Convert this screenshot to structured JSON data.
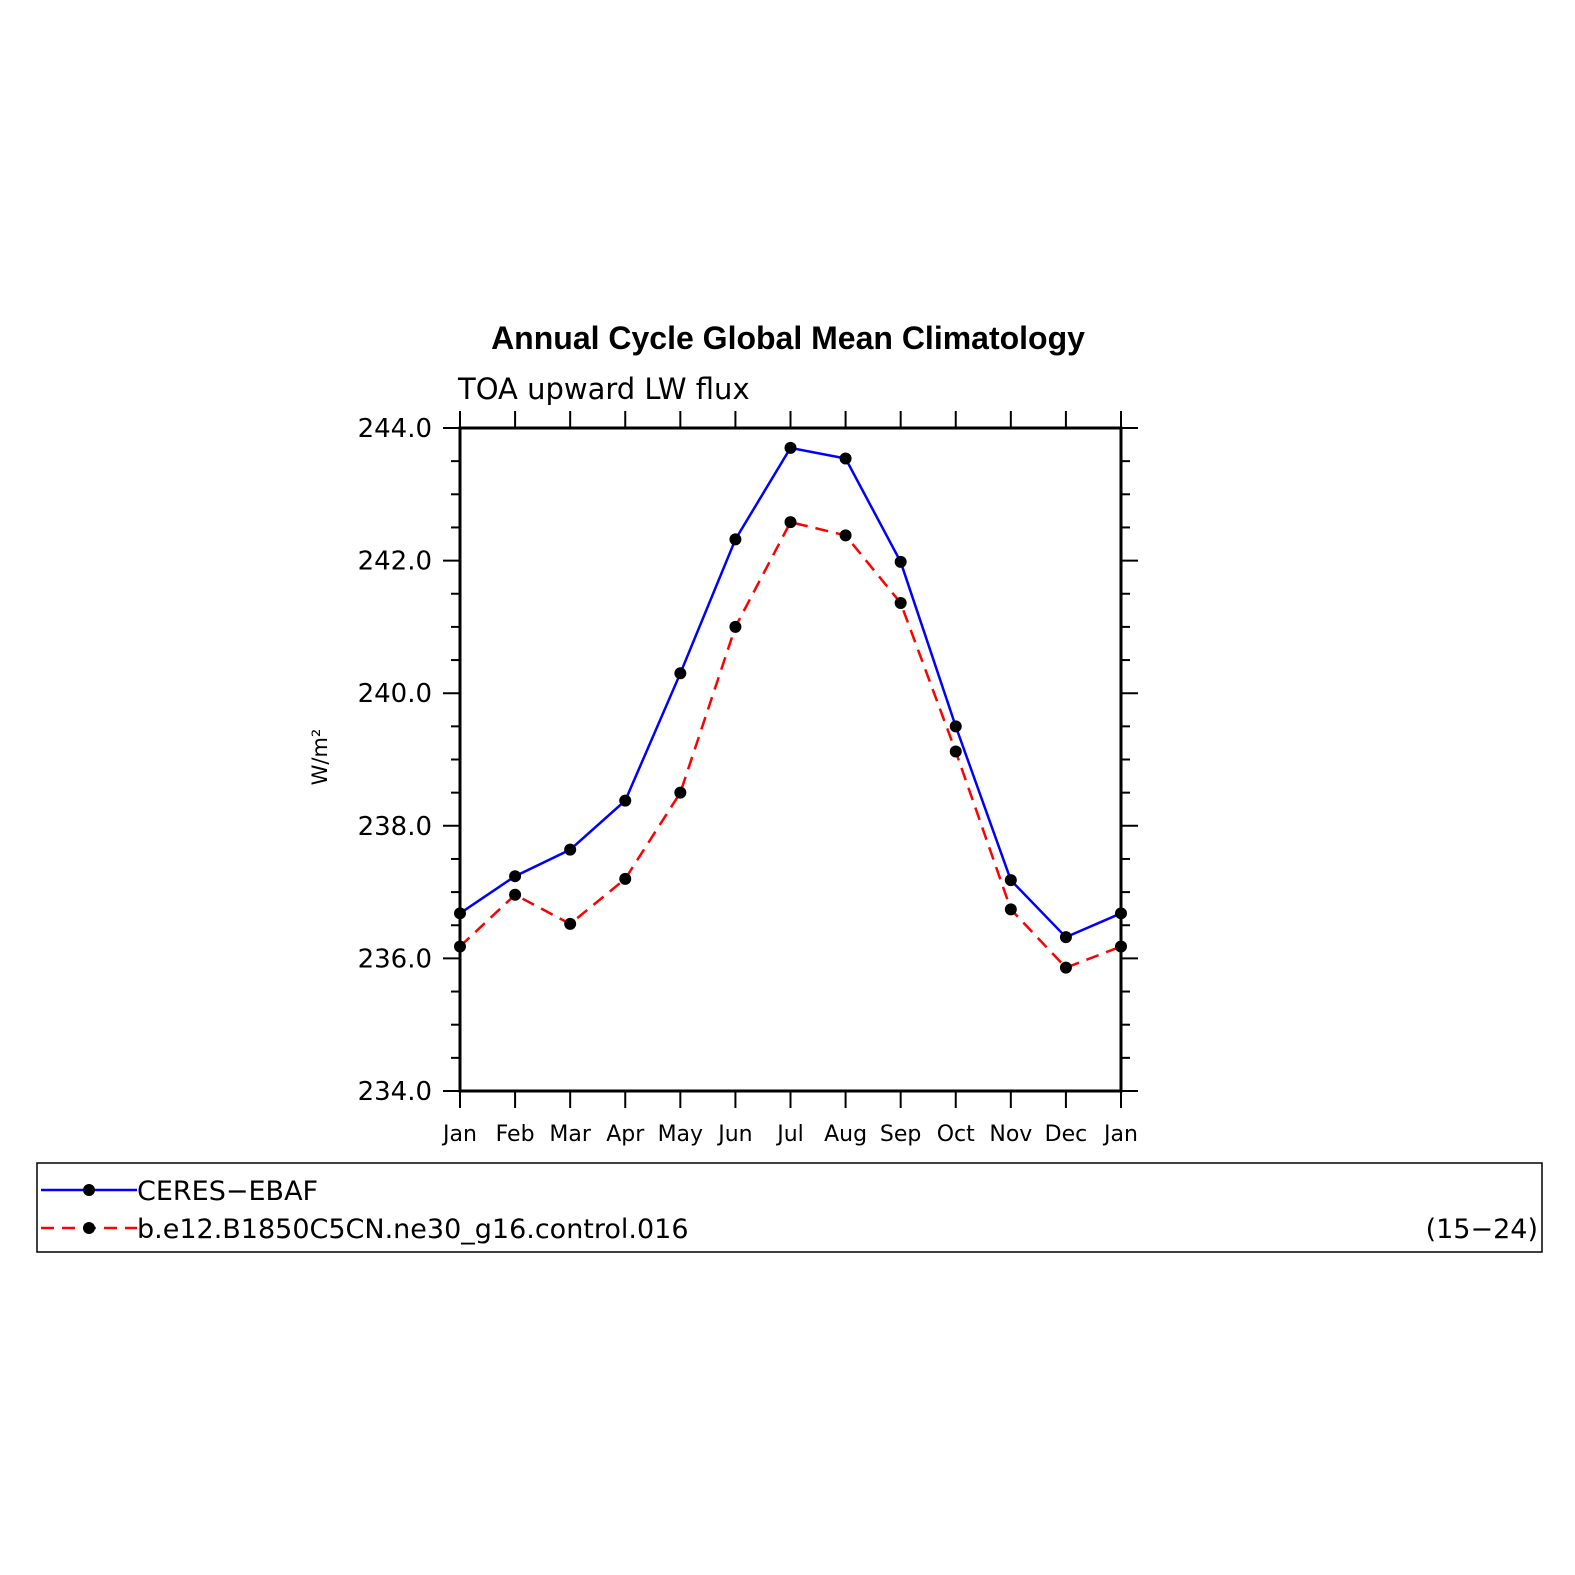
{
  "chart_data": {
    "type": "line",
    "title": "Annual Cycle Global Mean Climatology",
    "subtitle": "TOA upward LW flux",
    "ylabel": "W/m²",
    "xlabel": "",
    "categories": [
      "Jan",
      "Feb",
      "Mar",
      "Apr",
      "May",
      "Jun",
      "Jul",
      "Aug",
      "Sep",
      "Oct",
      "Nov",
      "Dec",
      "Jan"
    ],
    "ylim": [
      234.0,
      244.0
    ],
    "yticks": [
      "234.0",
      "236.0",
      "238.0",
      "240.0",
      "242.0",
      "244.0"
    ],
    "series": [
      {
        "name": "CERES−EBAF",
        "color": "#0000ff",
        "style": "solid",
        "values": [
          236.68,
          237.24,
          237.64,
          238.38,
          240.3,
          242.32,
          243.7,
          243.54,
          241.98,
          239.5,
          237.18,
          236.32,
          236.68
        ]
      },
      {
        "name": "b.e12.B1850C5CN.ne30_g16.control.016",
        "color": "#ff0000",
        "style": "dashed",
        "values": [
          236.18,
          236.96,
          236.52,
          237.2,
          238.5,
          241.0,
          242.58,
          242.38,
          241.36,
          239.12,
          236.74,
          235.86,
          236.18
        ]
      }
    ],
    "legend_note": "(15−24)",
    "grid": false,
    "legend": "bottom"
  }
}
